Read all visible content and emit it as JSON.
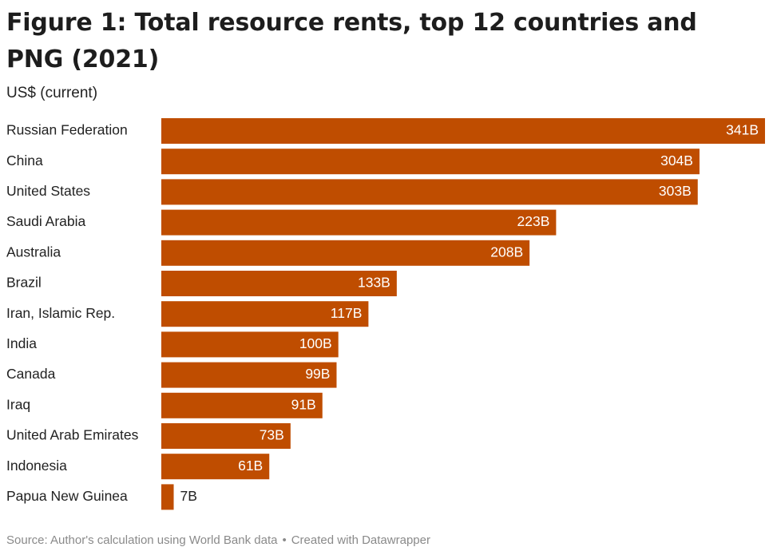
{
  "title": "Figure 1: Total resource rents, top 12 countries and PNG (2021)",
  "unit_label": "US$ (current)",
  "footer": {
    "source": "Source: Author's calculation using World Bank data",
    "separator": "•",
    "credit": "Created with Datawrapper"
  },
  "colors": {
    "bar": "#bf4d00",
    "label_inside": "#ffffff",
    "label_outside": "#222222"
  },
  "chart_data": {
    "type": "bar",
    "orientation": "horizontal",
    "categories": [
      "Russian Federation",
      "China",
      "United States",
      "Saudi Arabia",
      "Australia",
      "Brazil",
      "Iran, Islamic Rep.",
      "India",
      "Canada",
      "Iraq",
      "United Arab Emirates",
      "Indonesia",
      "Papua New Guinea"
    ],
    "values": [
      341,
      304,
      303,
      223,
      208,
      133,
      117,
      100,
      99,
      91,
      73,
      61,
      7
    ],
    "data_labels": [
      "341B",
      "304B",
      "303B",
      "223B",
      "208B",
      "133B",
      "117B",
      "100B",
      "99B",
      "91B",
      "73B",
      "61B",
      "7B"
    ],
    "title": "Figure 1: Total resource rents, top 12 countries and PNG (2021)",
    "ylabel": "US$ (current)",
    "xlim": [
      0,
      341
    ],
    "grid": false,
    "legend": false
  }
}
